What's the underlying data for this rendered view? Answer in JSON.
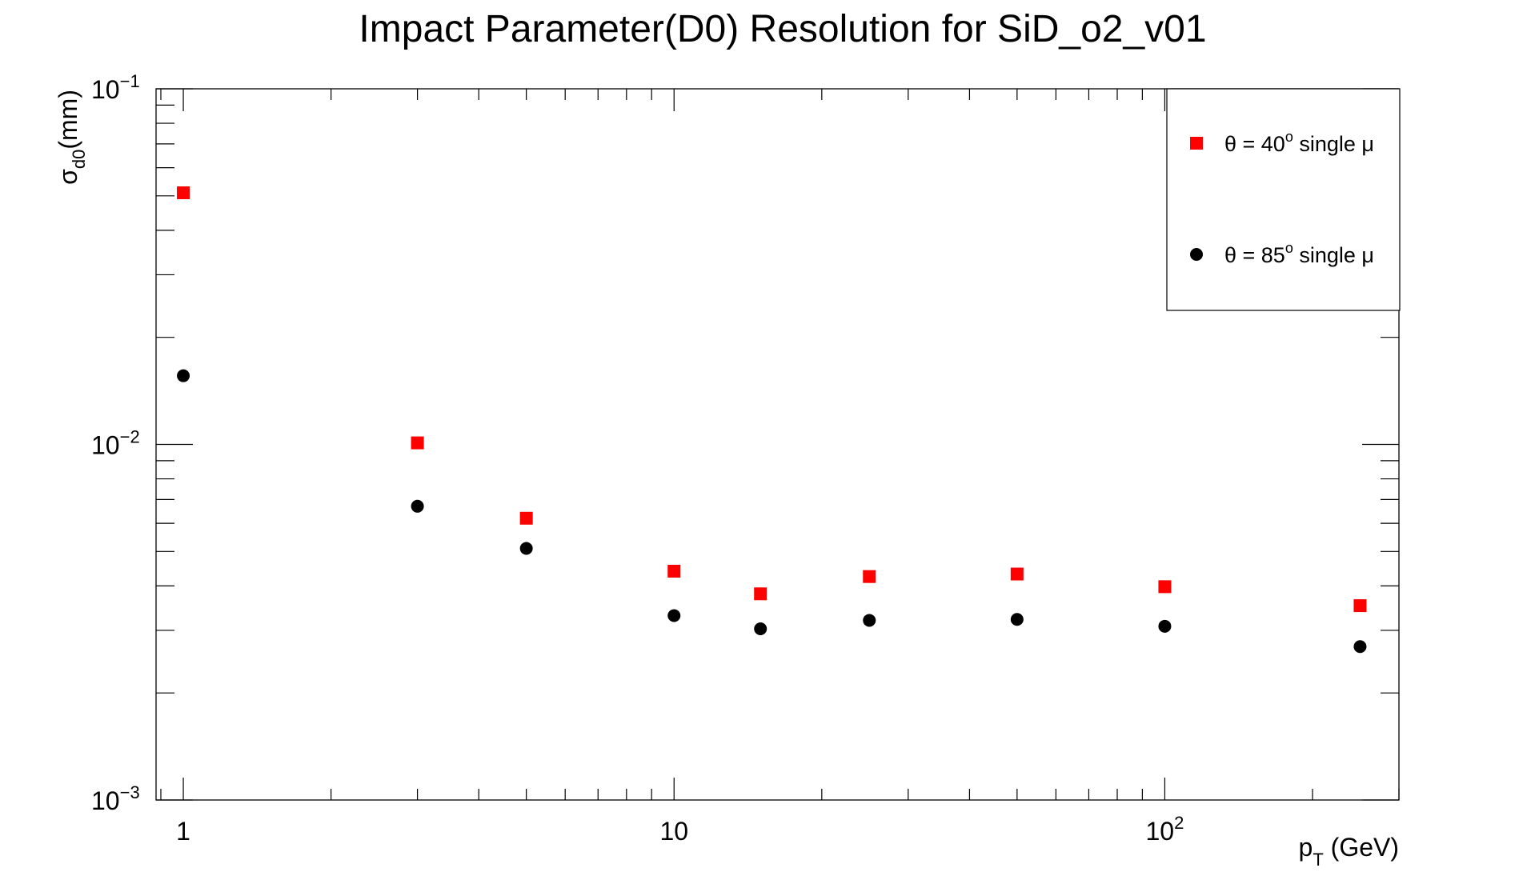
{
  "chart_data": {
    "type": "scatter",
    "title": "Impact Parameter(D0) Resolution for SiD_o2_v01",
    "xlabel": {
      "main": "p",
      "sub": "T",
      "rest": " (GeV)"
    },
    "ylabel": {
      "main": "σ",
      "sub": "d0",
      "rest": "(mm)"
    },
    "x_scale": "log",
    "y_scale": "log",
    "xlim": [
      0.88,
      300
    ],
    "ylim": [
      0.001,
      0.1
    ],
    "grid": false,
    "legend_position": "top-right",
    "x_tick_labels": [
      {
        "value": 1,
        "base": "1",
        "exp": ""
      },
      {
        "value": 10,
        "base": "10",
        "exp": ""
      },
      {
        "value": 100,
        "base": "10",
        "exp": "2"
      }
    ],
    "y_tick_labels": [
      {
        "value": 0.001,
        "base": "10",
        "exp": "−3"
      },
      {
        "value": 0.01,
        "base": "10",
        "exp": "−2"
      },
      {
        "value": 0.1,
        "base": "10",
        "exp": "−1"
      }
    ],
    "series": [
      {
        "legend": {
          "pre": "θ = 40",
          "sup": "o",
          "post": " single μ"
        },
        "marker": "square",
        "color": "#ff0000",
        "x": [
          1,
          3,
          5,
          10,
          15,
          25,
          50,
          100,
          250
        ],
        "y": [
          0.051,
          0.0101,
          0.0062,
          0.0044,
          0.0038,
          0.00425,
          0.00432,
          0.00398,
          0.00352
        ]
      },
      {
        "legend": {
          "pre": "θ = 85",
          "sup": "o",
          "post": " single μ"
        },
        "marker": "circle",
        "color": "#000000",
        "x": [
          1,
          3,
          5,
          10,
          15,
          25,
          50,
          100,
          250
        ],
        "y": [
          0.0156,
          0.0067,
          0.0051,
          0.0033,
          0.00303,
          0.0032,
          0.00322,
          0.00308,
          0.0027
        ]
      }
    ]
  }
}
